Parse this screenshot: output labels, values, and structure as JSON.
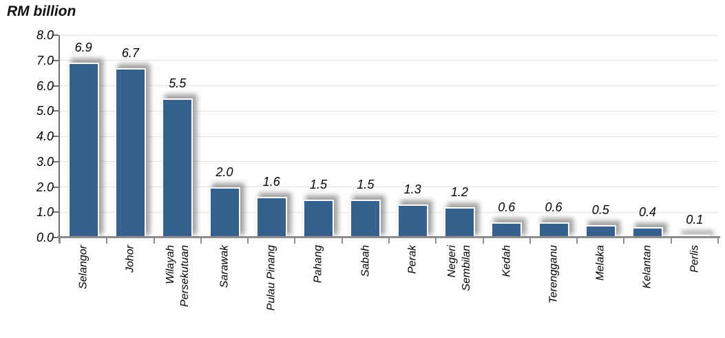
{
  "title": "RM billion",
  "chart_data": {
    "type": "bar",
    "title": "RM billion",
    "categories": [
      "Selangor",
      "Johor",
      "Wilayah\nPersekutuan",
      "Sarawak",
      "Pulau Pinang",
      "Pahang",
      "Sabah",
      "Perak",
      "Negeri\nSembilan",
      "Kedah",
      "Terengganu",
      "Melaka",
      "Kelantan",
      "Perlis"
    ],
    "values": [
      6.9,
      6.7,
      5.5,
      2.0,
      1.6,
      1.5,
      1.5,
      1.3,
      1.2,
      0.6,
      0.6,
      0.5,
      0.4,
      0.1
    ],
    "bar_labels": [
      "6.9",
      "6.7",
      "5.5",
      "2.0",
      "1.6",
      "1.5",
      "1.5",
      "1.3",
      "1.2",
      "0.6",
      "0.6",
      "0.5",
      "0.4",
      "0.1"
    ],
    "xlabel": "",
    "ylabel": "RM billion",
    "ylim": [
      0,
      8
    ],
    "yticks": [
      "0.0",
      "1.0",
      "2.0",
      "3.0",
      "4.0",
      "5.0",
      "6.0",
      "7.0",
      "8.0"
    ],
    "grid": "horizontal gridlines on",
    "legend": "none",
    "colors": {
      "bar_fill": "#36618E",
      "bar_border": "#FFFFFF",
      "bar_shadow": "#808080",
      "gridline": "#DFE3EC",
      "x_axis": "#8C8C8C",
      "y_axis": "#6E6E6E",
      "tick": "#8C8C8C",
      "text": "#000000",
      "title_text": "#111111"
    }
  }
}
